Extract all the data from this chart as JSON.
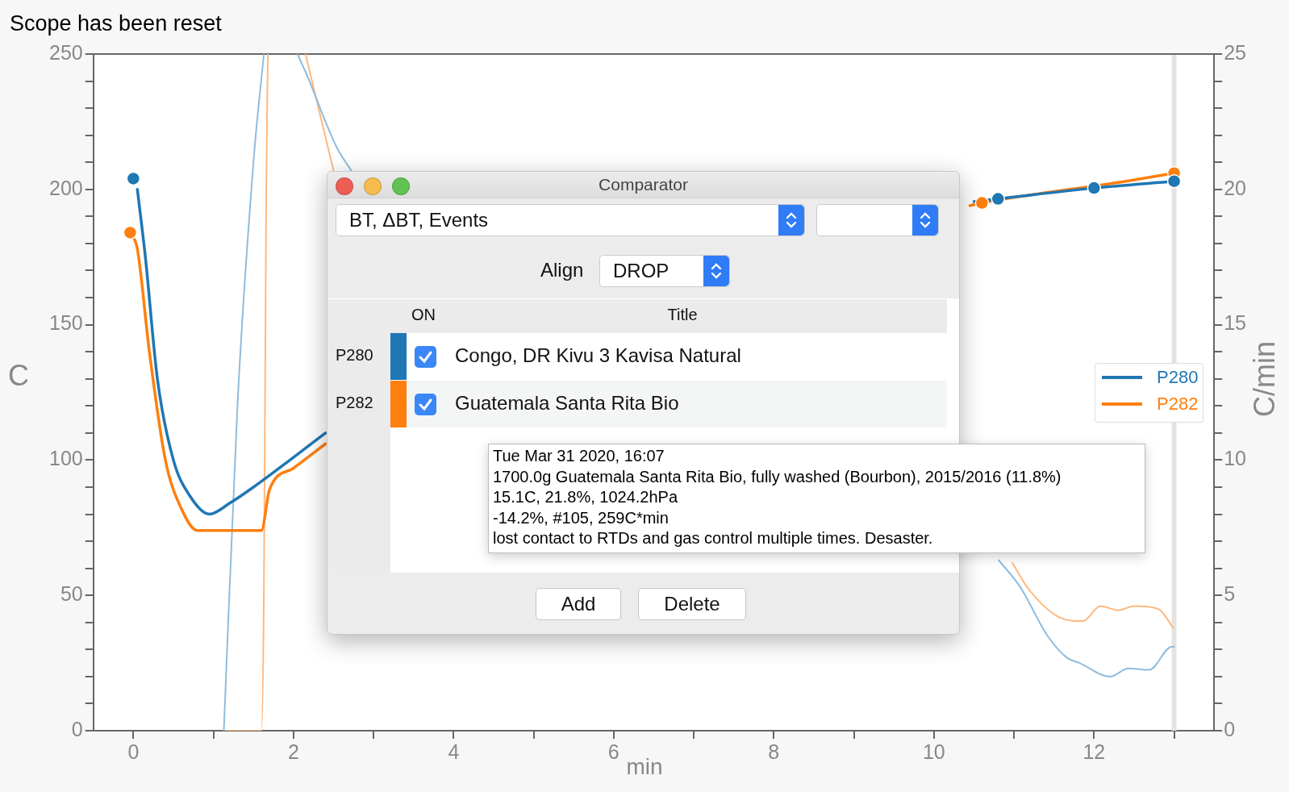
{
  "chart_data": {
    "type": "line",
    "title": "Scope has been reset",
    "xlabel": "min",
    "ylabel": "C",
    "y2label": "C/min",
    "xlim": [
      -0.5,
      13.5
    ],
    "xticks": [
      0,
      {
        "value": 1,
        "label": null
      },
      2,
      {
        "value": 3,
        "label": null
      },
      4,
      {
        "value": 5,
        "label": null
      },
      6,
      {
        "value": 7,
        "label": null
      },
      8,
      {
        "value": 9,
        "label": null
      },
      10,
      {
        "value": 11,
        "label": null
      },
      12,
      {
        "value": 13,
        "label": null
      }
    ],
    "ylim": [
      0,
      250
    ],
    "yticks": [
      0,
      {
        "value": 10,
        "label": null
      },
      {
        "value": 20,
        "label": null
      },
      {
        "value": 30,
        "label": null
      },
      {
        "value": 40,
        "label": null
      },
      50,
      {
        "value": 60,
        "label": null
      },
      {
        "value": 70,
        "label": null
      },
      {
        "value": 80,
        "label": null
      },
      {
        "value": 90,
        "label": null
      },
      100,
      {
        "value": 110,
        "label": null
      },
      {
        "value": 120,
        "label": null
      },
      {
        "value": 130,
        "label": null
      },
      {
        "value": 140,
        "label": null
      },
      150,
      {
        "value": 160,
        "label": null
      },
      {
        "value": 170,
        "label": null
      },
      {
        "value": 180,
        "label": null
      },
      {
        "value": 190,
        "label": null
      },
      200,
      {
        "value": 210,
        "label": null
      },
      {
        "value": 220,
        "label": null
      },
      {
        "value": 230,
        "label": null
      },
      {
        "value": 240,
        "label": null
      },
      250
    ],
    "y2lim": [
      0,
      25
    ],
    "y2ticks": [
      0,
      {
        "value": 1,
        "label": null
      },
      {
        "value": 2,
        "label": null
      },
      {
        "value": 3,
        "label": null
      },
      {
        "value": 4,
        "label": null
      },
      5,
      {
        "value": 6,
        "label": null
      },
      {
        "value": 7,
        "label": null
      },
      {
        "value": 8,
        "label": null
      },
      {
        "value": 9,
        "label": null
      },
      10,
      {
        "value": 11,
        "label": null
      },
      {
        "value": 12,
        "label": null
      },
      {
        "value": 13,
        "label": null
      },
      {
        "value": 14,
        "label": null
      },
      15,
      {
        "value": 16,
        "label": null
      },
      {
        "value": 17,
        "label": null
      },
      {
        "value": 18,
        "label": null
      },
      {
        "value": 19,
        "label": null
      },
      20,
      {
        "value": 21,
        "label": null
      },
      {
        "value": 22,
        "label": null
      },
      {
        "value": 23,
        "label": null
      },
      {
        "value": 24,
        "label": null
      },
      25
    ],
    "grid": false,
    "legend": "right",
    "line_style": "solid",
    "series": [
      {
        "name": "P280",
        "type": "line",
        "color": "#1f77b4",
        "x": [
          0.05,
          0.15,
          0.3,
          0.5,
          0.7,
          0.95,
          1.2,
          1.5,
          2,
          2.4,
          6,
          10.5,
          10.8,
          12,
          13
        ],
        "values": [
          200,
          175,
          130,
          100,
          87,
          80,
          84,
          90,
          101,
          110,
          null,
          195.5,
          196.5,
          200.5,
          203
        ]
      },
      {
        "name": "P282",
        "type": "line",
        "color": "#ff7f0e",
        "x": [
          -0.04,
          0.05,
          0.2,
          0.4,
          0.6,
          0.8,
          1.6,
          1.7,
          2,
          2.4,
          6,
          10.45,
          10.6,
          12.4,
          13
        ],
        "values": [
          184,
          178,
          140,
          100,
          82,
          74,
          74,
          89,
          97,
          106,
          null,
          194,
          195,
          203,
          206
        ]
      },
      {
        "type": "line",
        "axis": "y2",
        "color": "#8fbcdd",
        "x": [
          1.13,
          1.3,
          1.5,
          1.63,
          1.85,
          2.05,
          2.2,
          2.4,
          2.55,
          2.72,
          6,
          10.81,
          11.08,
          11.42,
          11.66,
          11.82,
          12.2,
          12.43,
          12.69,
          12.97,
          13
        ],
        "values": [
          0,
          12,
          21,
          25,
          null,
          25,
          24,
          22.5,
          21.5,
          20.7,
          null,
          6.3,
          5.3,
          3.5,
          2.7,
          2.5,
          2,
          2.3,
          2.25,
          3.1,
          3.1
        ]
      },
      {
        "type": "line",
        "axis": "y2",
        "color": "#ffb87d",
        "x": [
          1.15,
          1.6,
          1.63,
          1.66,
          1.68,
          1.9,
          2.15,
          2.5,
          6,
          10.98,
          11.19,
          11.56,
          11.86,
          12.08,
          12.3,
          12.5,
          12.8,
          12.99
        ],
        "values": [
          0,
          0,
          5,
          20,
          25,
          null,
          25,
          20.7,
          null,
          6.2,
          5.2,
          4.2,
          4.05,
          4.6,
          4.45,
          4.6,
          4.5,
          3.8
        ]
      },
      {
        "type": "scatter",
        "marker": "circle",
        "color": "#1f77b4",
        "x": [
          0,
          10.8,
          12,
          13
        ],
        "values": [
          204,
          196.5,
          200.5,
          203
        ]
      },
      {
        "type": "scatter",
        "marker": "circle",
        "color": "#ff7f0e",
        "x": [
          -0.04,
          10.6,
          13
        ],
        "values": [
          184,
          195,
          206
        ]
      }
    ],
    "ref_lines": [
      {
        "axis": "x",
        "value": 13,
        "color": "#e3e3e3"
      }
    ],
    "annotations": [
      "Comparator",
      "BT, ΔBT, Events",
      "Align",
      "DROP",
      "ON",
      "Title",
      "P280",
      "Congo, DR Kivu 3 Kavisa Natural",
      "P282",
      "Guatemala Santa Rita Bio",
      "Tue Mar 31 2020, 16:07",
      "1700.0g Guatemala Santa Rita Bio, fully washed (Bourbon), 2015/2016 (11.8%)",
      "15.1C, 21.8%, 1024.2hPa",
      "-14.2%, #105, 259C*min",
      "lost contact to RTDs and gas control multiple times. Desaster.",
      "Add",
      "Delete"
    ]
  }
}
